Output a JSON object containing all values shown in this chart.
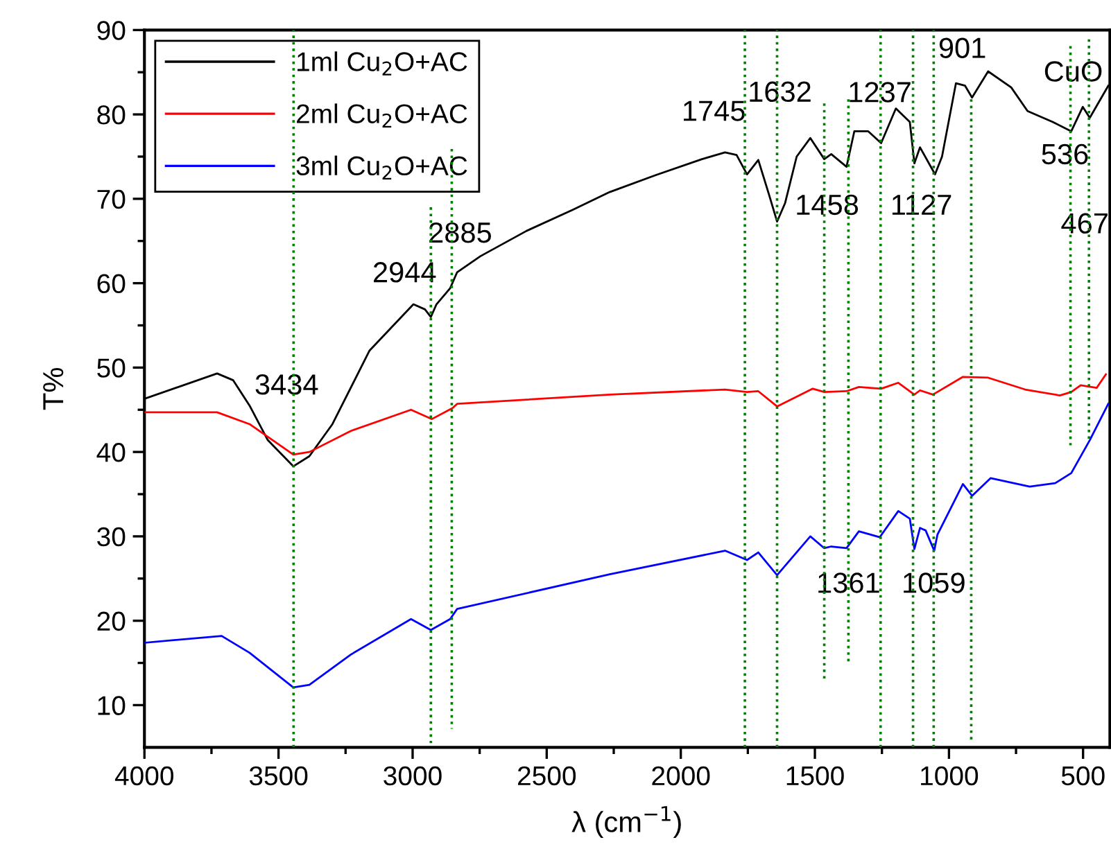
{
  "chart_data": {
    "type": "line",
    "xlabel": "λ (cm$^{−1}$)",
    "ylabel": "T%",
    "xlim": [
      4000,
      400
    ],
    "ylim": [
      5,
      90
    ],
    "xticks": [
      4000,
      {
        "value": 3750,
        "label": null
      },
      3500,
      {
        "value": 3250,
        "label": null
      },
      3000,
      {
        "value": 2750,
        "label": null
      },
      2500,
      {
        "value": 2250,
        "label": null
      },
      2000,
      {
        "value": 1750,
        "label": null
      },
      1500,
      {
        "value": 1250,
        "label": null
      },
      1000,
      {
        "value": 750,
        "label": null
      },
      500
    ],
    "yticks": [
      10,
      {
        "value": 15,
        "label": null
      },
      20,
      {
        "value": 25,
        "label": null
      },
      30,
      {
        "value": 35,
        "label": null
      },
      40,
      {
        "value": 45,
        "label": null
      },
      50,
      {
        "value": 55,
        "label": null
      },
      60,
      {
        "value": 65,
        "label": null
      },
      70,
      {
        "value": 75,
        "label": null
      },
      80,
      {
        "value": 85,
        "label": null
      },
      90
    ],
    "legend": "top left",
    "series": [
      {
        "name": "1ml Cu$_{2}$O+AC",
        "color": "#000000",
        "x": [
          4000,
          3729,
          3669,
          3608,
          3540,
          3445,
          3385,
          3299,
          3161,
          2997,
          2954,
          2932,
          2911,
          2860,
          2834,
          2747,
          2575,
          2403,
          2265,
          2094,
          1921,
          1835,
          1792,
          1753,
          1711,
          1672,
          1641,
          1611,
          1568,
          1517,
          1465,
          1439,
          1382,
          1353,
          1301,
          1253,
          1198,
          1146,
          1129,
          1108,
          1052,
          1026,
          974,
          940,
          914,
          854,
          768,
          707,
          613,
          544,
          501,
          475,
          406
        ],
        "values": [
          46.3,
          49.3,
          48.5,
          45.5,
          41.4,
          38.3,
          39.5,
          43.3,
          52,
          57.5,
          56.9,
          56,
          57.5,
          59.4,
          61.3,
          63.2,
          66.2,
          68.7,
          70.8,
          72.8,
          74.7,
          75.5,
          75.2,
          72.9,
          74.6,
          70.6,
          67.3,
          69.5,
          75,
          77.2,
          74.7,
          75.3,
          73.8,
          78,
          78,
          76.6,
          80.7,
          79.1,
          74.2,
          76.1,
          72.9,
          75,
          83.7,
          83.4,
          82,
          85.1,
          83.2,
          80.4,
          79.1,
          78,
          80.9,
          79.6,
          83.4
        ]
      },
      {
        "name": "2ml Cu$_{2}$O+AC",
        "color": "#ff0000",
        "x": [
          3996,
          3729,
          3608,
          3445,
          3385,
          3230,
          3006,
          2928,
          2851,
          2834,
          2265,
          1835,
          1753,
          1711,
          1641,
          1508,
          1465,
          1382,
          1336,
          1253,
          1189,
          1129,
          1108,
          1060,
          948,
          854,
          716,
          587,
          544,
          509,
          449,
          415
        ],
        "values": [
          44.7,
          44.7,
          43.3,
          39.7,
          40,
          42.5,
          45,
          43.9,
          45.2,
          45.7,
          46.8,
          47.4,
          47.1,
          47.2,
          45.4,
          47.5,
          47.1,
          47.2,
          47.7,
          47.5,
          48.2,
          46.8,
          47.3,
          46.8,
          48.9,
          48.8,
          47.4,
          46.7,
          47.1,
          47.9,
          47.6,
          49.2
        ]
      },
      {
        "name": "3ml Cu$_{2}$O+AC",
        "color": "#0000ff",
        "x": [
          3996,
          3712,
          3608,
          3445,
          3385,
          3230,
          3006,
          2932,
          2860,
          2834,
          2265,
          1835,
          1753,
          1711,
          1641,
          1517,
          1465,
          1439,
          1382,
          1336,
          1258,
          1189,
          1146,
          1129,
          1108,
          1087,
          1055,
          1043,
          948,
          914,
          845,
          699,
          604,
          544,
          475,
          406
        ],
        "values": [
          17.4,
          18.2,
          16.2,
          12.1,
          12.4,
          16,
          20.2,
          18.9,
          20.2,
          21.4,
          25.5,
          28.3,
          27.2,
          28.1,
          25.4,
          30,
          28.6,
          28.8,
          28.6,
          30.6,
          29.9,
          33,
          32.1,
          28.5,
          31,
          30.7,
          28.3,
          30.2,
          36.2,
          34.8,
          36.9,
          35.9,
          36.3,
          37.5,
          41.4,
          45.7
        ]
      },
      {
        "color": "#008000",
        "line_style": "dotted",
        "x": [
          2932,
          2932
        ],
        "values": [
          69,
          5.5
        ]
      },
      {
        "color": "#008000",
        "line_style": "dotted",
        "x": [
          2854,
          2854
        ],
        "values": [
          75.9,
          7.2
        ]
      },
      {
        "color": "#008000",
        "line_style": "dotted",
        "x": [
          1465,
          1465
        ],
        "values": [
          81.3,
          12.7
        ]
      },
      {
        "color": "#008000",
        "line_style": "dotted",
        "x": [
          1375,
          1375
        ],
        "values": [
          81.8,
          15.1
        ]
      },
      {
        "color": "#008000",
        "line_style": "dotted",
        "x": [
          917,
          917
        ],
        "values": [
          81.8,
          5.5
        ]
      },
      {
        "color": "#008000",
        "line_style": "dotted",
        "x": [
          547,
          547
        ],
        "values": [
          88.1,
          40.8
        ]
      },
      {
        "color": "#008000",
        "line_style": "dotted",
        "x": [
          478,
          478
        ],
        "values": [
          88.9,
          41.4
        ]
      }
    ],
    "ref_lines": [
      {
        "axis": "x",
        "value": 3444,
        "color": "#008000",
        "line_style": "dotted"
      },
      {
        "axis": "x",
        "value": 1761,
        "color": "#008000",
        "line_style": "dotted"
      },
      {
        "axis": "x",
        "value": 1641,
        "color": "#008000",
        "line_style": "dotted"
      },
      {
        "axis": "x",
        "value": 1255,
        "color": "#008000",
        "line_style": "dotted"
      },
      {
        "axis": "x",
        "value": 1134,
        "color": "#008000",
        "line_style": "dotted"
      },
      {
        "axis": "x",
        "value": 1057,
        "color": "#008000",
        "line_style": "dotted"
      }
    ],
    "annotations": [
      {
        "text": "3434",
        "x": 3444,
        "y": 47.7
      },
      {
        "text": "2944",
        "x": 2932,
        "y": 61
      },
      {
        "text": "2885",
        "x": 2854,
        "y": 65.7
      },
      {
        "text": "1745",
        "x": 1753,
        "y": 72.9
      },
      {
        "text": "1632",
        "x": 1641,
        "y": 82.4
      },
      {
        "text": "1458",
        "x": 1465,
        "y": 69
      },
      {
        "text": "1237",
        "x": 1253,
        "y": 76.6
      },
      {
        "text": "1127",
        "x": 1134,
        "y": 69
      },
      {
        "text": "901",
        "x": 914,
        "y": 82
      },
      {
        "text": "CuO",
        "x": 547,
        "y": 84.8
      },
      {
        "text": "536",
        "x": 547,
        "y": 75
      },
      {
        "text": "467",
        "x": 478,
        "y": 66.8
      },
      {
        "text": "1361",
        "x": 1375,
        "y": 24.2
      },
      {
        "text": "1059",
        "x": 1057,
        "y": 24.2
      }
    ]
  }
}
